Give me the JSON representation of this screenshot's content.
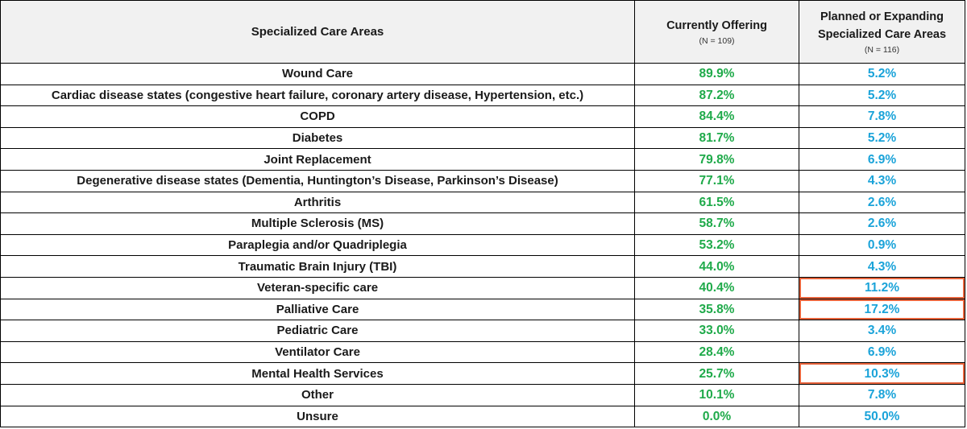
{
  "header": {
    "area_label": "Specialized Care Areas",
    "current_label": "Currently Offering",
    "current_n": "(N = 109)",
    "planned_label_line1": "Planned or Expanding",
    "planned_label_line2": "Specialized Care Areas",
    "planned_n": "(N = 116)"
  },
  "colors": {
    "current": "#1faa4a",
    "planned": "#1aa3d9",
    "highlight_border": "#e8643c",
    "header_bg": "#f1f1f1"
  },
  "rows": [
    {
      "area": "Wound Care",
      "current": "89.9%",
      "planned": "5.2%",
      "highlight": false
    },
    {
      "area": "Cardiac disease states (congestive heart failure, coronary artery disease, Hypertension, etc.)",
      "current": "87.2%",
      "planned": "5.2%",
      "highlight": false
    },
    {
      "area": "COPD",
      "current": "84.4%",
      "planned": "7.8%",
      "highlight": false
    },
    {
      "area": "Diabetes",
      "current": "81.7%",
      "planned": "5.2%",
      "highlight": false
    },
    {
      "area": "Joint Replacement",
      "current": "79.8%",
      "planned": "6.9%",
      "highlight": false
    },
    {
      "area": "Degenerative disease states (Dementia, Huntington’s Disease, Parkinson’s Disease)",
      "current": "77.1%",
      "planned": "4.3%",
      "highlight": false
    },
    {
      "area": "Arthritis",
      "current": "61.5%",
      "planned": "2.6%",
      "highlight": false
    },
    {
      "area": "Multiple Sclerosis (MS)",
      "current": "58.7%",
      "planned": "2.6%",
      "highlight": false
    },
    {
      "area": "Paraplegia and/or Quadriplegia",
      "current": "53.2%",
      "planned": "0.9%",
      "highlight": false
    },
    {
      "area": "Traumatic Brain Injury (TBI)",
      "current": "44.0%",
      "planned": "4.3%",
      "highlight": false
    },
    {
      "area": "Veteran-specific care",
      "current": "40.4%",
      "planned": "11.2%",
      "highlight": true
    },
    {
      "area": "Palliative Care",
      "current": "35.8%",
      "planned": "17.2%",
      "highlight": true
    },
    {
      "area": "Pediatric Care",
      "current": "33.0%",
      "planned": "3.4%",
      "highlight": false
    },
    {
      "area": "Ventilator Care",
      "current": "28.4%",
      "planned": "6.9%",
      "highlight": false
    },
    {
      "area": "Mental Health Services",
      "current": "25.7%",
      "planned": "10.3%",
      "highlight": true
    },
    {
      "area": "Other",
      "current": "10.1%",
      "planned": "7.8%",
      "highlight": false
    },
    {
      "area": "Unsure",
      "current": "0.0%",
      "planned": "50.0%",
      "highlight": false
    }
  ]
}
